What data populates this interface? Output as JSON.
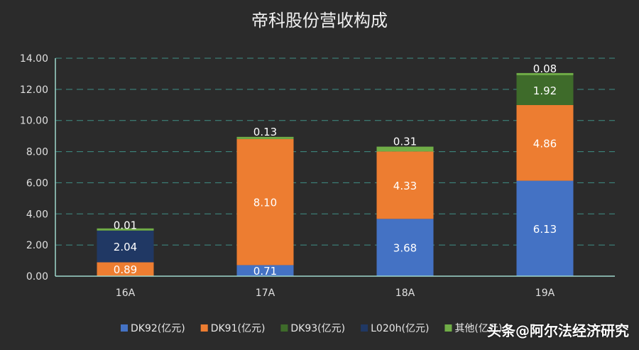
{
  "chart_data": {
    "type": "bar",
    "stacked": true,
    "title": "帝科股份营收构成",
    "categories": [
      "16A",
      "17A",
      "18A",
      "19A"
    ],
    "ylim": [
      0,
      14
    ],
    "yticks": [
      "0.00",
      "2.00",
      "4.00",
      "6.00",
      "8.00",
      "10.00",
      "12.00",
      "14.00"
    ],
    "grid": true,
    "legend_position": "bottom",
    "series": [
      {
        "name": "DK92(亿元)",
        "color": "#4472c4",
        "values": [
          0,
          0.71,
          3.68,
          6.13
        ],
        "labels": [
          "",
          "0.71",
          "3.68",
          "6.13"
        ]
      },
      {
        "name": "DK91(亿元)",
        "color": "#ed7d31",
        "values": [
          0.89,
          8.1,
          4.33,
          4.86
        ],
        "labels": [
          "0.89",
          "8.10",
          "4.33",
          "4.86"
        ]
      },
      {
        "name": "DK93(亿元)",
        "color": "#3e6b2a",
        "values": [
          0,
          0,
          0,
          1.92
        ],
        "labels": [
          "",
          "",
          "",
          "1.92"
        ]
      },
      {
        "name": "L020h(亿元)",
        "color": "#203864",
        "values": [
          2.04,
          0,
          0,
          0
        ],
        "labels": [
          "2.04",
          "",
          "",
          ""
        ]
      },
      {
        "name": "其他(亿元)",
        "color": "#70ad47",
        "values": [
          0.01,
          0.13,
          0.31,
          0.08
        ],
        "labels": [
          "0.01",
          "0.13",
          "0.31",
          "0.08"
        ]
      }
    ]
  },
  "watermark": "头条@阿尔法经济研究"
}
